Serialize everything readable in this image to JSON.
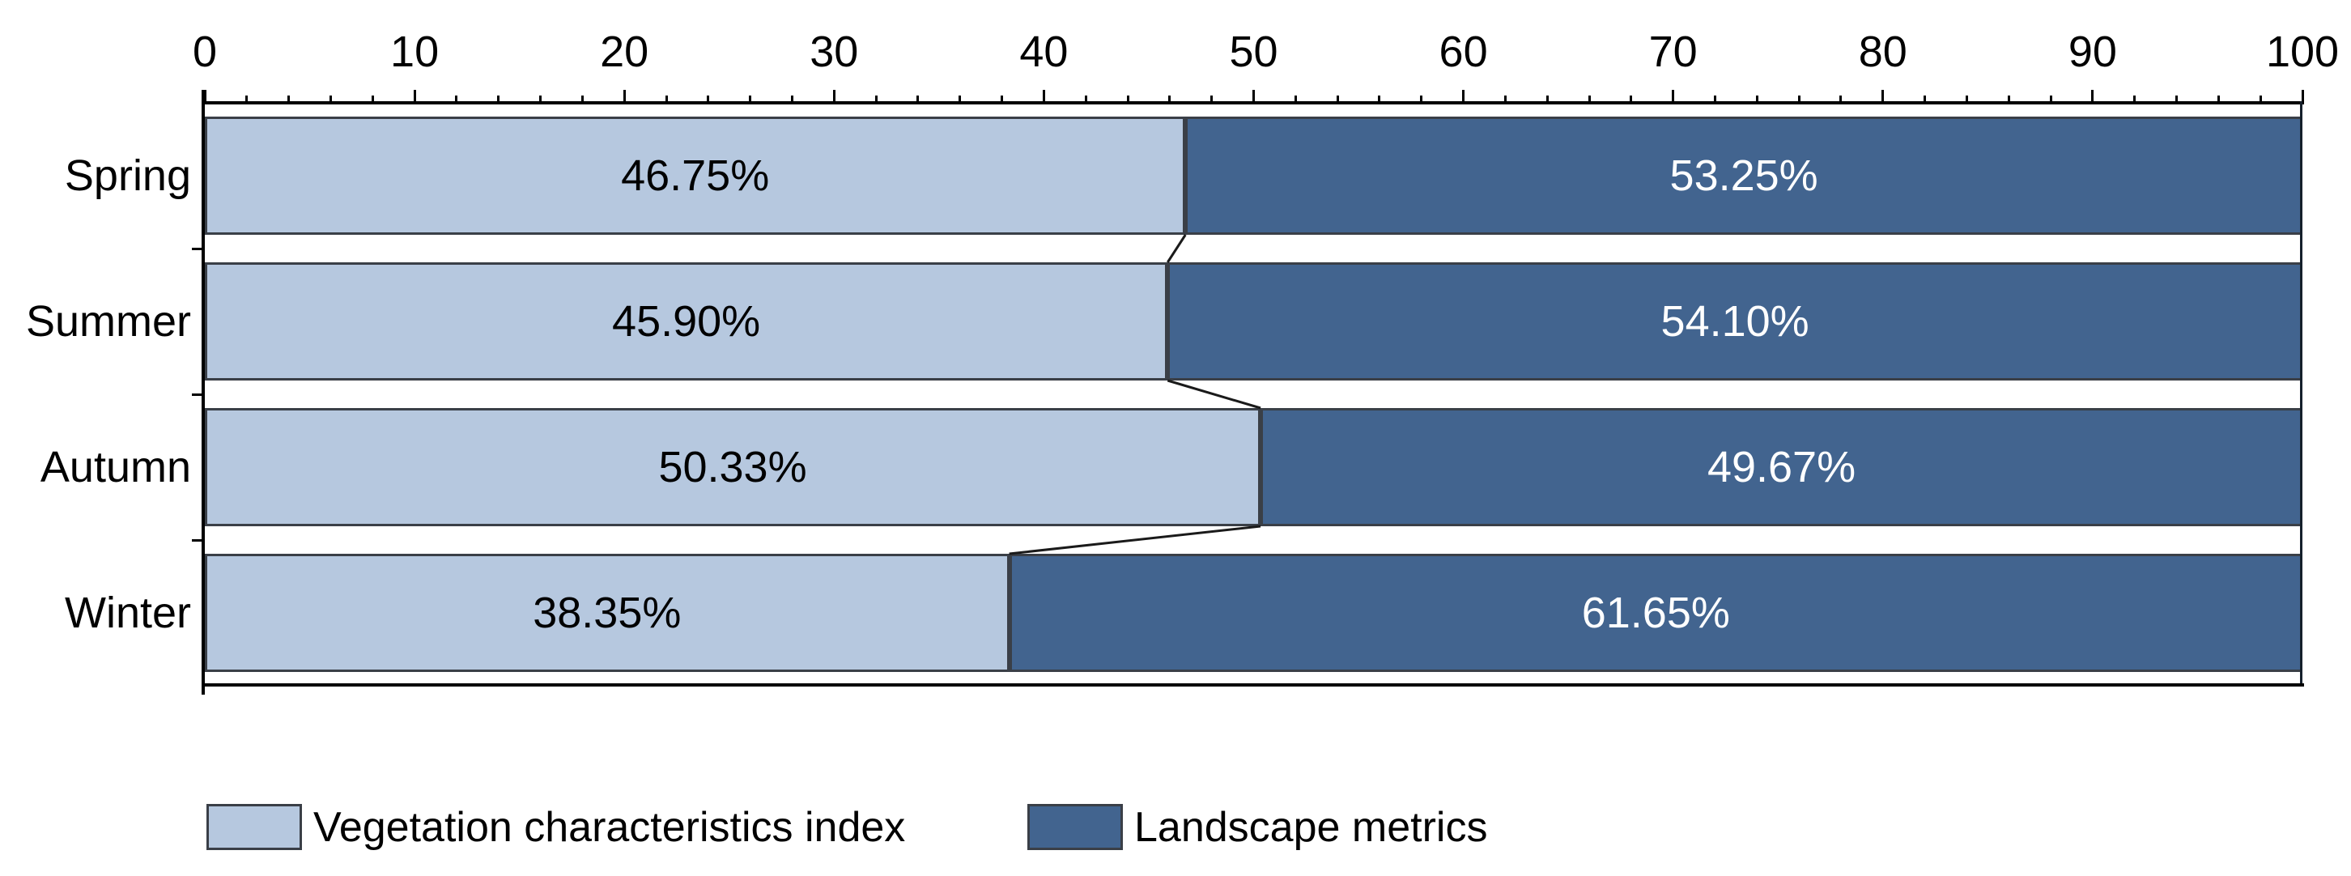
{
  "chart_data": {
    "type": "bar",
    "variant": "horizontal_stacked_percentage",
    "title": "",
    "categories": [
      "Spring",
      "Summer",
      "Autumn",
      "Winter"
    ],
    "series": [
      {
        "name": "Vegetation characteristics index",
        "color": "#b6c8df",
        "label_text_color": "#000000",
        "values": [
          46.75,
          45.9,
          50.33,
          38.35
        ],
        "data_labels": [
          "46.75%",
          "45.90%",
          "50.33%",
          "38.35%"
        ]
      },
      {
        "name": "Landscape metrics",
        "color": "#42648f",
        "label_text_color": "#ffffff",
        "values": [
          53.25,
          54.1,
          49.67,
          61.65
        ],
        "data_labels": [
          "53.25%",
          "54.10%",
          "49.67%",
          "61.65%"
        ]
      }
    ],
    "x_axis": {
      "position": "top",
      "min": 0,
      "max": 100,
      "major_tick_step": 10,
      "minor_tick_step": 2,
      "tick_labels": [
        "0",
        "10",
        "20",
        "30",
        "40",
        "50",
        "60",
        "70",
        "80",
        "90",
        "100"
      ]
    },
    "y_axis": {
      "category_boundary_ticks": true
    },
    "series_connector_lines": true,
    "grid": false,
    "legend": {
      "position": "bottom",
      "entries": [
        "Vegetation characteristics index",
        "Landscape metrics"
      ]
    },
    "colors": {
      "axis_line": "#000000",
      "bar_border": "#3a3f47",
      "connector_line": "#1a1a1a",
      "background": "#ffffff"
    }
  }
}
